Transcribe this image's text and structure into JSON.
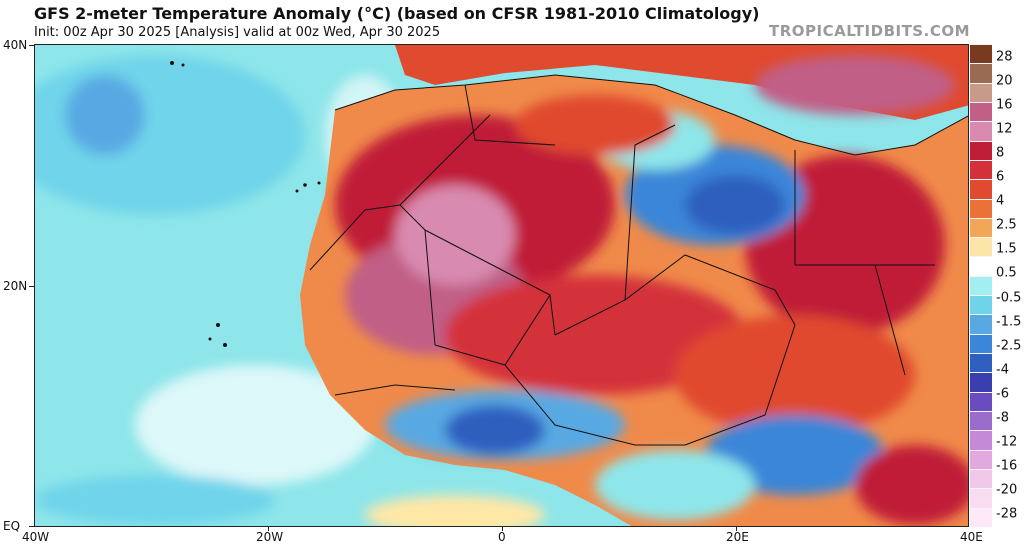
{
  "header": {
    "title": "GFS 2-meter Temperature Anomaly (°C) (based on CFSR 1981-2010 Climatology)",
    "subtitle": "Init: 00z Apr 30 2025   [Analysis]   valid at 00z Wed, Apr 30 2025",
    "brand": "TROPICALTIDBITS.COM"
  },
  "axes": {
    "lat_labels": [
      "40N",
      "20N",
      "EQ"
    ],
    "lon_labels": [
      "40W",
      "20W",
      "0",
      "20E",
      "40E"
    ]
  },
  "colorbar": {
    "labels": [
      "28",
      "20",
      "16",
      "12",
      "8",
      "6",
      "4",
      "2.5",
      "1.5",
      "0.5",
      "-0.5",
      "-1.5",
      "-2.5",
      "-4",
      "-6",
      "-8",
      "-12",
      "-16",
      "-20",
      "-28"
    ],
    "colors": [
      "#7a3a20",
      "#9a6a52",
      "#c89a88",
      "#c15f86",
      "#d98ab0",
      "#c01d38",
      "#d4303a",
      "#e04a2e",
      "#ea7236",
      "#f1a658",
      "#fde4a8",
      "#ffffff",
      "#a3eef0",
      "#6fd4ea",
      "#58a9e3",
      "#3b86d8",
      "#2f5fbf",
      "#3a3fb0",
      "#6a4cc0",
      "#9c6ccd",
      "#c58ad7",
      "#e2a8e0",
      "#f2c8ea",
      "#f9dcf2",
      "#ffe8f8"
    ]
  },
  "map_legend": {
    "anomaly_colors": {
      "strong_warm": "#c01d38",
      "warm": "#e04a2e",
      "mild_warm": "#f1a658",
      "neutral": "#ffffff",
      "cool": "#8ee6ea",
      "cold": "#3b86d8",
      "very_cold": "#2f5fbf"
    }
  }
}
